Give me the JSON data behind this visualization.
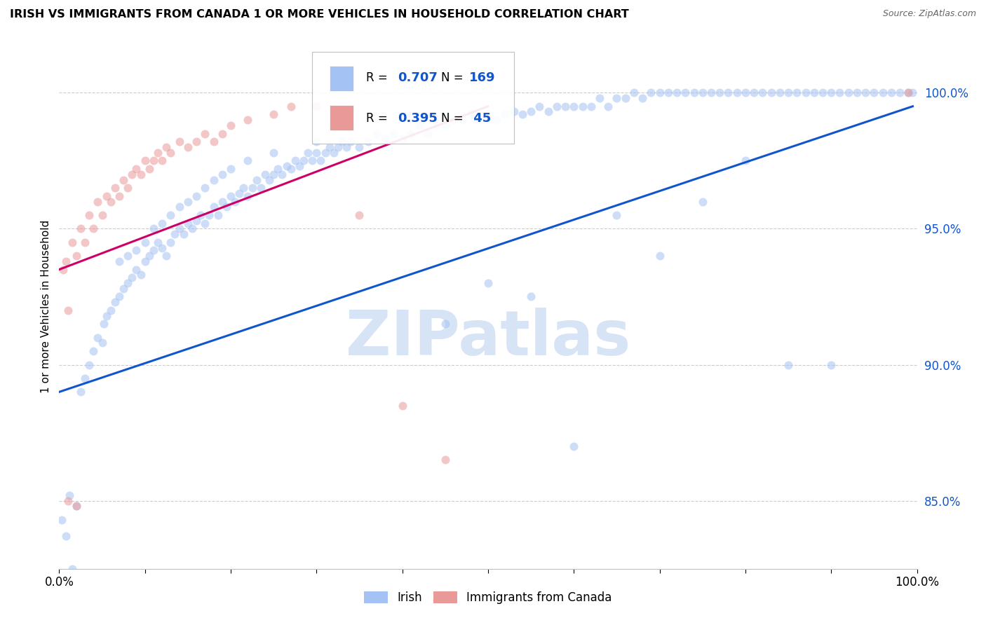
{
  "title": "IRISH VS IMMIGRANTS FROM CANADA 1 OR MORE VEHICLES IN HOUSEHOLD CORRELATION CHART",
  "source": "Source: ZipAtlas.com",
  "ylabel": "1 or more Vehicles in Household",
  "legend_label_blue": "Irish",
  "legend_label_pink": "Immigrants from Canada",
  "R_blue": 0.707,
  "N_blue": 169,
  "R_pink": 0.395,
  "N_pink": 45,
  "y_tick_values": [
    85.0,
    90.0,
    95.0,
    100.0
  ],
  "x_range": [
    0.0,
    100.0
  ],
  "y_range": [
    82.5,
    101.8
  ],
  "blue_color": "#a4c2f4",
  "pink_color": "#ea9999",
  "line_blue": "#1155cc",
  "line_pink": "#cc0066",
  "watermark_color": "#d6e4f5",
  "background_color": "#ffffff",
  "blue_scatter": [
    [
      0.3,
      84.3
    ],
    [
      0.8,
      83.7
    ],
    [
      1.5,
      82.5
    ],
    [
      1.2,
      85.2
    ],
    [
      2.0,
      84.8
    ],
    [
      2.5,
      89.0
    ],
    [
      3.0,
      89.5
    ],
    [
      3.5,
      90.0
    ],
    [
      4.0,
      90.5
    ],
    [
      4.5,
      91.0
    ],
    [
      5.0,
      90.8
    ],
    [
      5.2,
      91.5
    ],
    [
      5.5,
      91.8
    ],
    [
      6.0,
      92.0
    ],
    [
      6.5,
      92.3
    ],
    [
      7.0,
      92.5
    ],
    [
      7.5,
      92.8
    ],
    [
      8.0,
      93.0
    ],
    [
      8.5,
      93.2
    ],
    [
      9.0,
      93.5
    ],
    [
      9.5,
      93.3
    ],
    [
      10.0,
      93.8
    ],
    [
      10.5,
      94.0
    ],
    [
      11.0,
      94.2
    ],
    [
      11.5,
      94.5
    ],
    [
      12.0,
      94.3
    ],
    [
      12.5,
      94.0
    ],
    [
      13.0,
      94.5
    ],
    [
      13.5,
      94.8
    ],
    [
      14.0,
      95.0
    ],
    [
      14.5,
      94.8
    ],
    [
      15.0,
      95.2
    ],
    [
      15.5,
      95.0
    ],
    [
      16.0,
      95.3
    ],
    [
      16.5,
      95.5
    ],
    [
      17.0,
      95.2
    ],
    [
      17.5,
      95.5
    ],
    [
      18.0,
      95.8
    ],
    [
      18.5,
      95.5
    ],
    [
      19.0,
      96.0
    ],
    [
      19.5,
      95.8
    ],
    [
      20.0,
      96.2
    ],
    [
      20.5,
      96.0
    ],
    [
      21.0,
      96.3
    ],
    [
      21.5,
      96.5
    ],
    [
      22.0,
      96.2
    ],
    [
      22.5,
      96.5
    ],
    [
      23.0,
      96.8
    ],
    [
      23.5,
      96.5
    ],
    [
      24.0,
      97.0
    ],
    [
      24.5,
      96.8
    ],
    [
      25.0,
      97.0
    ],
    [
      25.5,
      97.2
    ],
    [
      26.0,
      97.0
    ],
    [
      26.5,
      97.3
    ],
    [
      27.0,
      97.2
    ],
    [
      27.5,
      97.5
    ],
    [
      28.0,
      97.3
    ],
    [
      28.5,
      97.5
    ],
    [
      29.0,
      97.8
    ],
    [
      29.5,
      97.5
    ],
    [
      30.0,
      97.8
    ],
    [
      30.5,
      97.5
    ],
    [
      31.0,
      97.8
    ],
    [
      31.5,
      98.0
    ],
    [
      32.0,
      97.8
    ],
    [
      32.5,
      98.0
    ],
    [
      33.0,
      98.2
    ],
    [
      33.5,
      98.0
    ],
    [
      34.0,
      98.2
    ],
    [
      35.0,
      98.0
    ],
    [
      36.0,
      98.2
    ],
    [
      37.0,
      98.5
    ],
    [
      38.0,
      98.3
    ],
    [
      39.0,
      98.5
    ],
    [
      40.0,
      98.3
    ],
    [
      41.0,
      98.5
    ],
    [
      42.0,
      98.8
    ],
    [
      43.0,
      98.5
    ],
    [
      44.0,
      98.8
    ],
    [
      45.0,
      98.8
    ],
    [
      46.0,
      99.0
    ],
    [
      47.0,
      99.0
    ],
    [
      48.0,
      99.2
    ],
    [
      49.0,
      99.0
    ],
    [
      50.0,
      99.2
    ],
    [
      51.0,
      99.0
    ],
    [
      52.0,
      99.2
    ],
    [
      53.0,
      99.3
    ],
    [
      54.0,
      99.2
    ],
    [
      55.0,
      99.3
    ],
    [
      56.0,
      99.5
    ],
    [
      57.0,
      99.3
    ],
    [
      58.0,
      99.5
    ],
    [
      59.0,
      99.5
    ],
    [
      60.0,
      99.5
    ],
    [
      61.0,
      99.5
    ],
    [
      62.0,
      99.5
    ],
    [
      63.0,
      99.8
    ],
    [
      64.0,
      99.5
    ],
    [
      65.0,
      99.8
    ],
    [
      66.0,
      99.8
    ],
    [
      67.0,
      100.0
    ],
    [
      68.0,
      99.8
    ],
    [
      69.0,
      100.0
    ],
    [
      70.0,
      100.0
    ],
    [
      71.0,
      100.0
    ],
    [
      72.0,
      100.0
    ],
    [
      73.0,
      100.0
    ],
    [
      74.0,
      100.0
    ],
    [
      75.0,
      100.0
    ],
    [
      76.0,
      100.0
    ],
    [
      77.0,
      100.0
    ],
    [
      78.0,
      100.0
    ],
    [
      79.0,
      100.0
    ],
    [
      80.0,
      100.0
    ],
    [
      81.0,
      100.0
    ],
    [
      82.0,
      100.0
    ],
    [
      83.0,
      100.0
    ],
    [
      84.0,
      100.0
    ],
    [
      85.0,
      100.0
    ],
    [
      86.0,
      100.0
    ],
    [
      87.0,
      100.0
    ],
    [
      88.0,
      100.0
    ],
    [
      89.0,
      100.0
    ],
    [
      90.0,
      100.0
    ],
    [
      91.0,
      100.0
    ],
    [
      92.0,
      100.0
    ],
    [
      93.0,
      100.0
    ],
    [
      94.0,
      100.0
    ],
    [
      95.0,
      100.0
    ],
    [
      96.0,
      100.0
    ],
    [
      97.0,
      100.0
    ],
    [
      98.0,
      100.0
    ],
    [
      99.0,
      100.0
    ],
    [
      99.5,
      100.0
    ],
    [
      7.0,
      93.8
    ],
    [
      8.0,
      94.0
    ],
    [
      9.0,
      94.2
    ],
    [
      10.0,
      94.5
    ],
    [
      11.0,
      95.0
    ],
    [
      12.0,
      95.2
    ],
    [
      13.0,
      95.5
    ],
    [
      14.0,
      95.8
    ],
    [
      15.0,
      96.0
    ],
    [
      16.0,
      96.2
    ],
    [
      17.0,
      96.5
    ],
    [
      18.0,
      96.8
    ],
    [
      19.0,
      97.0
    ],
    [
      20.0,
      97.2
    ],
    [
      22.0,
      97.5
    ],
    [
      25.0,
      97.8
    ],
    [
      30.0,
      98.2
    ],
    [
      50.0,
      93.0
    ],
    [
      60.0,
      87.0
    ],
    [
      65.0,
      95.5
    ],
    [
      70.0,
      94.0
    ],
    [
      75.0,
      96.0
    ],
    [
      80.0,
      97.5
    ],
    [
      85.0,
      90.0
    ],
    [
      90.0,
      90.0
    ],
    [
      45.0,
      91.5
    ],
    [
      55.0,
      92.5
    ]
  ],
  "pink_scatter": [
    [
      0.5,
      93.5
    ],
    [
      0.8,
      93.8
    ],
    [
      1.0,
      92.0
    ],
    [
      1.5,
      94.5
    ],
    [
      2.0,
      94.0
    ],
    [
      2.5,
      95.0
    ],
    [
      3.0,
      94.5
    ],
    [
      3.5,
      95.5
    ],
    [
      4.0,
      95.0
    ],
    [
      4.5,
      96.0
    ],
    [
      5.0,
      95.5
    ],
    [
      5.5,
      96.2
    ],
    [
      6.0,
      96.0
    ],
    [
      6.5,
      96.5
    ],
    [
      7.0,
      96.2
    ],
    [
      7.5,
      96.8
    ],
    [
      8.0,
      96.5
    ],
    [
      8.5,
      97.0
    ],
    [
      9.0,
      97.2
    ],
    [
      9.5,
      97.0
    ],
    [
      10.0,
      97.5
    ],
    [
      10.5,
      97.2
    ],
    [
      11.0,
      97.5
    ],
    [
      11.5,
      97.8
    ],
    [
      12.0,
      97.5
    ],
    [
      12.5,
      98.0
    ],
    [
      13.0,
      97.8
    ],
    [
      14.0,
      98.2
    ],
    [
      15.0,
      98.0
    ],
    [
      16.0,
      98.2
    ],
    [
      17.0,
      98.5
    ],
    [
      18.0,
      98.2
    ],
    [
      19.0,
      98.5
    ],
    [
      20.0,
      98.8
    ],
    [
      22.0,
      99.0
    ],
    [
      25.0,
      99.2
    ],
    [
      27.0,
      99.5
    ],
    [
      30.0,
      99.5
    ],
    [
      35.0,
      95.5
    ],
    [
      1.0,
      85.0
    ],
    [
      2.0,
      84.8
    ],
    [
      40.0,
      88.5
    ],
    [
      45.0,
      86.5
    ],
    [
      99.0,
      100.0
    ]
  ],
  "blue_line_x": [
    0.0,
    99.5
  ],
  "blue_line_y": [
    89.0,
    99.5
  ],
  "pink_line_x": [
    0.0,
    50.0
  ],
  "pink_line_y": [
    93.5,
    99.5
  ]
}
